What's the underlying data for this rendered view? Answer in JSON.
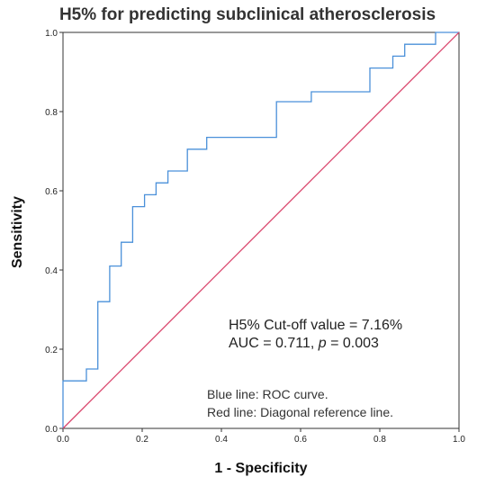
{
  "chart_data": {
    "type": "line",
    "title": "H5% for predicting subclinical atherosclerosis",
    "xlabel": "1 - Specificity",
    "ylabel": "Sensitivity",
    "xlim": [
      0,
      1
    ],
    "ylim": [
      0,
      1
    ],
    "xticks": [
      "0.0",
      "0.2",
      "0.4",
      "0.6",
      "0.8",
      "1.0"
    ],
    "yticks": [
      "0.0",
      "0.2",
      "0.4",
      "0.6",
      "0.8",
      "1.0"
    ],
    "grid": false,
    "series": [
      {
        "color": "#4a90d9",
        "x": [
          0,
          0,
          0.059,
          0.059,
          0.088,
          0.088,
          0.118,
          0.118,
          0.147,
          0.147,
          0.176,
          0.176,
          0.206,
          0.206,
          0.235,
          0.235,
          0.265,
          0.265,
          0.314,
          0.314,
          0.363,
          0.363,
          0.539,
          0.539,
          0.627,
          0.627,
          0.775,
          0.775,
          0.833,
          0.833,
          0.863,
          0.863,
          0.941,
          0.941,
          1.0
        ],
        "y": [
          0,
          0.12,
          0.12,
          0.15,
          0.15,
          0.32,
          0.32,
          0.41,
          0.41,
          0.47,
          0.47,
          0.56,
          0.56,
          0.59,
          0.59,
          0.62,
          0.62,
          0.65,
          0.65,
          0.705,
          0.705,
          0.735,
          0.735,
          0.825,
          0.825,
          0.85,
          0.85,
          0.91,
          0.91,
          0.94,
          0.94,
          0.97,
          0.97,
          1.0,
          1.0
        ]
      },
      {
        "color": "#d9446b",
        "x": [
          0,
          1
        ],
        "y": [
          0,
          1
        ]
      }
    ],
    "annotations": {
      "cutoff": "H5% Cut-off value = 7.16%",
      "auc_prefix": "AUC = 0.711, ",
      "p_label": "p",
      "p_value": " = 0.003",
      "note_blue": "Blue line: ROC curve.",
      "note_red": "Red line: Diagonal reference line."
    }
  }
}
